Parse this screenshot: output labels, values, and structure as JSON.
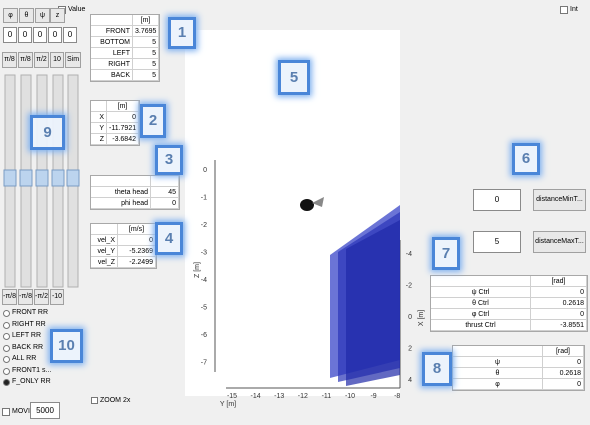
{
  "angle_buttons": [
    "φ",
    "θ",
    "ψ",
    "z"
  ],
  "value_checkbox": "Value",
  "inputs": [
    0,
    0,
    0,
    0,
    0
  ],
  "step_buttons": [
    "π/8",
    "π/8",
    "π/2",
    "10",
    "Sim"
  ],
  "neg_buttons": [
    "-π/8",
    "-π/8",
    "-π/2",
    "-10"
  ],
  "radios": [
    "FRONT RR",
    "RIGHT RR",
    "LEFT RR",
    "BACK RR",
    "ALL RR",
    "FRONT1 s...",
    "F_ONLY RR"
  ],
  "movie": {
    "label": "MOVIE",
    "value": 5000
  },
  "zoom": "ZOOM 2x",
  "int_checkbox": "Int",
  "distance_min": {
    "value": 0,
    "button": "distanceMinT..."
  },
  "distance_max": {
    "value": 5,
    "button": "distanceMaxT..."
  },
  "tables": [
    {
      "unit": "[m]",
      "rows": [
        [
          "FRONT",
          3.7695
        ],
        [
          "BOTTOM",
          5
        ],
        [
          "LEFT",
          5
        ],
        [
          "RIGHT",
          5
        ],
        [
          "BACK",
          5
        ]
      ]
    },
    {
      "unit": "[m]",
      "rows": [
        [
          "X",
          0
        ],
        [
          "Y",
          -11.7921
        ],
        [
          "Z",
          -3.6842
        ]
      ]
    },
    {
      "rows": [
        [
          "theta head",
          45
        ],
        [
          "phi head",
          0
        ]
      ]
    },
    {
      "unit": "[m/s]",
      "rows": [
        [
          "vel_X",
          0
        ],
        [
          "vel_Y",
          -5.2369
        ],
        [
          "vel_Z",
          -2.2499
        ]
      ]
    },
    {
      "unit": "[rad]",
      "rows": [
        [
          "ψ Ctrl",
          0
        ],
        [
          "θ Ctrl",
          0.2618
        ],
        [
          "φ Ctrl",
          0
        ],
        [
          "thrust Ctrl",
          -3.8551
        ]
      ]
    },
    {
      "unit": "[rad]",
      "rows": [
        [
          "ψ",
          0
        ],
        [
          "θ",
          0.2618
        ],
        [
          "φ",
          0
        ]
      ]
    }
  ],
  "plot": {
    "z_label": "Z [m]",
    "z_ticks": [
      0,
      -1,
      -2,
      -3,
      -4,
      -5,
      -6,
      -7
    ],
    "y_label": "Y [m]",
    "y_ticks": [
      -15,
      -14,
      -13,
      -12,
      -11,
      -10,
      -9,
      -8
    ],
    "x_label": "X [m]",
    "x_ticks": [
      -4,
      -2,
      0,
      2,
      4
    ]
  },
  "badges": [
    "1",
    "2",
    "3",
    "4",
    "5",
    "6",
    "7",
    "8",
    "9",
    "10"
  ]
}
